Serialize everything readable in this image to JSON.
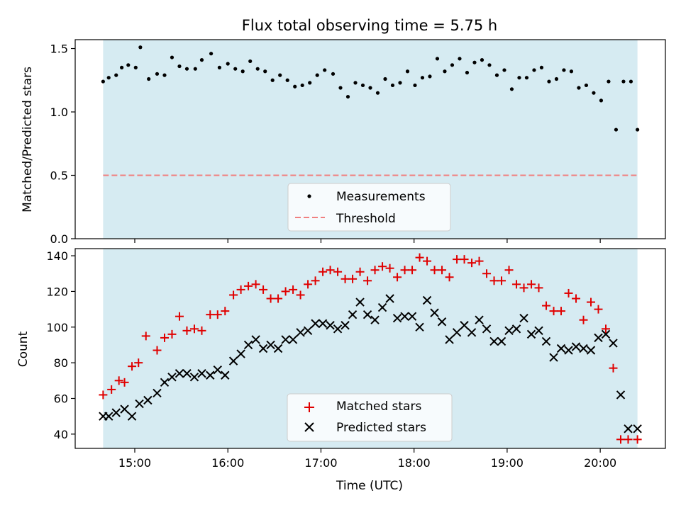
{
  "chart_data": [
    {
      "type": "scatter",
      "title": "Flux total observing time = 5.75 h",
      "xlabel": "",
      "ylabel": "Matched/Predicted stars",
      "xlim": [
        14.36,
        20.7
      ],
      "ylim": [
        0.0,
        1.57
      ],
      "yticks": [
        0.0,
        0.5,
        1.0,
        1.5
      ],
      "ytick_labels": [
        "0.0",
        "0.5",
        "1.0",
        "1.5"
      ],
      "shaded_span": [
        14.66,
        20.4
      ],
      "threshold": 0.5,
      "legend": [
        "Measurements",
        "Threshold"
      ],
      "x": [
        14.66,
        14.72,
        14.8,
        14.86,
        14.93,
        15.01,
        15.06,
        15.15,
        15.24,
        15.32,
        15.4,
        15.48,
        15.56,
        15.65,
        15.72,
        15.82,
        15.91,
        16.0,
        16.08,
        16.16,
        16.24,
        16.32,
        16.4,
        16.48,
        16.56,
        16.64,
        16.72,
        16.8,
        16.88,
        16.96,
        17.04,
        17.13,
        17.21,
        17.29,
        17.37,
        17.45,
        17.53,
        17.61,
        17.69,
        17.77,
        17.85,
        17.93,
        18.01,
        18.09,
        18.17,
        18.25,
        18.33,
        18.41,
        18.49,
        18.57,
        18.65,
        18.73,
        18.81,
        18.89,
        18.97,
        19.05,
        19.13,
        19.21,
        19.29,
        19.37,
        19.45,
        19.53,
        19.61,
        19.69,
        19.77,
        19.85,
        19.93,
        20.01,
        20.09,
        20.17,
        20.25,
        20.33,
        20.4
      ],
      "series": [
        {
          "name": "Measurements",
          "values": [
            1.24,
            1.27,
            1.29,
            1.35,
            1.37,
            1.35,
            1.51,
            1.26,
            1.3,
            1.29,
            1.43,
            1.36,
            1.34,
            1.34,
            1.41,
            1.46,
            1.35,
            1.38,
            1.34,
            1.32,
            1.4,
            1.34,
            1.32,
            1.25,
            1.29,
            1.25,
            1.2,
            1.21,
            1.23,
            1.29,
            1.33,
            1.3,
            1.19,
            1.12,
            1.23,
            1.21,
            1.19,
            1.15,
            1.26,
            1.21,
            1.23,
            1.32,
            1.21,
            1.27,
            1.28,
            1.42,
            1.32,
            1.37,
            1.42,
            1.31,
            1.39,
            1.41,
            1.37,
            1.29,
            1.33,
            1.18,
            1.27,
            1.27,
            1.33,
            1.35,
            1.24,
            1.26,
            1.33,
            1.32,
            1.19,
            1.21,
            1.15,
            1.09,
            1.24,
            0.86,
            1.24,
            1.24,
            0.86
          ]
        }
      ]
    },
    {
      "type": "scatter",
      "title": "",
      "xlabel": "Time (UTC)",
      "ylabel": "Count",
      "xlim": [
        14.36,
        20.7
      ],
      "ylim": [
        32,
        144
      ],
      "yticks": [
        40,
        60,
        80,
        100,
        120,
        140
      ],
      "ytick_labels": [
        "40",
        "60",
        "80",
        "100",
        "120",
        "140"
      ],
      "xticks": [
        15,
        16,
        17,
        18,
        19,
        20
      ],
      "xtick_labels": [
        "15:00",
        "16:00",
        "17:00",
        "18:00",
        "19:00",
        "20:00"
      ],
      "shaded_span": [
        14.66,
        20.4
      ],
      "legend": [
        "Matched stars",
        "Predicted stars"
      ],
      "series": [
        {
          "name": "Matched stars",
          "x": [
            14.66,
            14.75,
            14.83,
            14.89,
            14.97,
            15.04,
            15.12,
            15.24,
            15.32,
            15.4,
            15.48,
            15.56,
            15.64,
            15.72,
            15.81,
            15.89,
            15.97,
            16.06,
            16.14,
            16.22,
            16.3,
            16.38,
            16.46,
            16.54,
            16.62,
            16.7,
            16.78,
            16.86,
            16.94,
            17.02,
            17.1,
            17.18,
            17.26,
            17.34,
            17.42,
            17.5,
            17.58,
            17.66,
            17.74,
            17.82,
            17.9,
            17.98,
            18.06,
            18.14,
            18.22,
            18.3,
            18.38,
            18.46,
            18.54,
            18.62,
            18.7,
            18.78,
            18.86,
            18.94,
            19.02,
            19.1,
            19.18,
            19.26,
            19.34,
            19.42,
            19.5,
            19.58,
            19.66,
            19.74,
            19.82,
            19.9,
            19.98,
            20.06,
            20.14,
            20.22,
            20.3,
            20.4
          ],
          "values": [
            62,
            65,
            70,
            69,
            78,
            80,
            95,
            87,
            94,
            96,
            106,
            98,
            99,
            98,
            107,
            107,
            109,
            118,
            121,
            123,
            124,
            121,
            116,
            116,
            120,
            121,
            118,
            124,
            126,
            131,
            132,
            131,
            127,
            127,
            131,
            126,
            132,
            134,
            133,
            128,
            132,
            132,
            139,
            137,
            132,
            132,
            128,
            138,
            138,
            136,
            137,
            130,
            126,
            126,
            132,
            124,
            122,
            124,
            122,
            112,
            109,
            109,
            119,
            116,
            104,
            114,
            110,
            99,
            77,
            37,
            37,
            37
          ]
        },
        {
          "name": "Predicted stars",
          "x": [
            14.66,
            14.72,
            14.8,
            14.89,
            14.97,
            15.05,
            15.14,
            15.24,
            15.32,
            15.4,
            15.48,
            15.56,
            15.64,
            15.72,
            15.81,
            15.89,
            15.97,
            16.06,
            16.14,
            16.22,
            16.3,
            16.38,
            16.46,
            16.54,
            16.62,
            16.7,
            16.78,
            16.86,
            16.94,
            17.02,
            17.1,
            17.18,
            17.26,
            17.34,
            17.42,
            17.5,
            17.58,
            17.66,
            17.74,
            17.82,
            17.9,
            17.98,
            18.06,
            18.14,
            18.22,
            18.3,
            18.38,
            18.46,
            18.54,
            18.62,
            18.7,
            18.78,
            18.86,
            18.94,
            19.02,
            19.1,
            19.18,
            19.26,
            19.34,
            19.42,
            19.5,
            19.58,
            19.66,
            19.74,
            19.82,
            19.9,
            19.98,
            20.06,
            20.14,
            20.22,
            20.3,
            20.4
          ],
          "values": [
            50,
            50,
            52,
            54,
            50,
            57,
            59,
            63,
            69,
            72,
            74,
            74,
            72,
            74,
            73,
            76,
            73,
            81,
            85,
            90,
            93,
            88,
            90,
            88,
            93,
            93,
            97,
            98,
            102,
            102,
            101,
            99,
            101,
            107,
            114,
            107,
            104,
            111,
            116,
            105,
            106,
            106,
            100,
            115,
            108,
            103,
            93,
            97,
            101,
            97,
            104,
            99,
            92,
            92,
            98,
            99,
            105,
            96,
            98,
            92,
            83,
            88,
            87,
            89,
            88,
            87,
            94,
            96,
            91,
            62,
            43,
            43
          ]
        }
      ]
    }
  ]
}
